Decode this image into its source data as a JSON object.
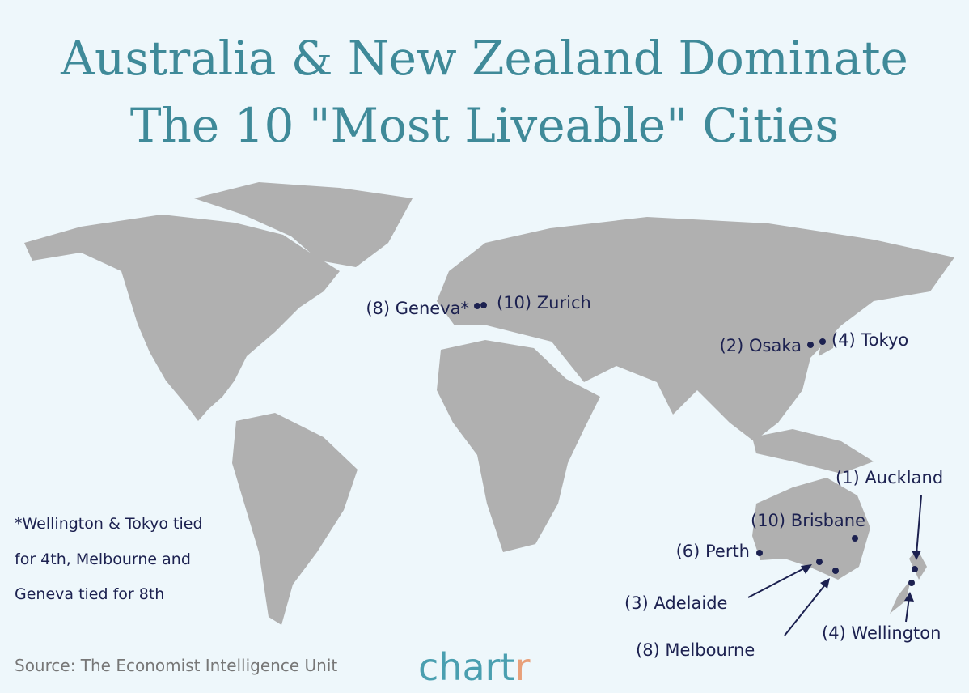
{
  "title": [
    "Australia & New Zealand Dominate",
    "The 10 \"Most Liveable\" Cities"
  ],
  "cities": [
    {
      "label": "(8) Geneva*"
    },
    {
      "label": "(10) Zurich"
    },
    {
      "label": "(2) Osaka"
    },
    {
      "label": "(4) Tokyo"
    },
    {
      "label": "(1) Auckland"
    },
    {
      "label": "(10) Brisbane"
    },
    {
      "label": "(6) Perth"
    },
    {
      "label": "(3) Adelaide"
    },
    {
      "label": "(8) Melbourne"
    },
    {
      "label": "(4) Wellington"
    }
  ],
  "footnote": [
    "*Wellington & Tokyo tied",
    "for 4th, Melbourne and",
    "Geneva tied for 8th"
  ],
  "source": "Source: The Economist Intelligence Unit",
  "logo": {
    "text": "chart",
    "accent": "r"
  }
}
